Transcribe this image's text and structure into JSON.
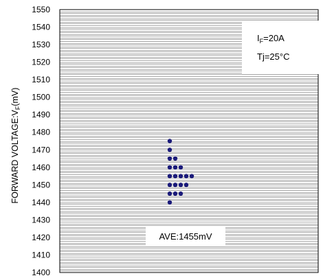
{
  "chart_data": {
    "type": "scatter",
    "ylabel_main": "FORWARD VOLTAGE:V",
    "ylabel_sub": "F",
    "ylabel_unit": "(mV)",
    "ylim": [
      1400,
      1550
    ],
    "yticks": [
      1400,
      1410,
      1420,
      1430,
      1440,
      1450,
      1460,
      1470,
      1480,
      1490,
      1500,
      1510,
      1520,
      1530,
      1540,
      1550
    ],
    "minor_grid_step": 1,
    "grid": true,
    "marker_color": "#1a1a7a",
    "points": [
      {
        "x": 0,
        "y": 1475
      },
      {
        "x": 0,
        "y": 1470
      },
      {
        "x": 0,
        "y": 1465
      },
      {
        "x": 1,
        "y": 1465
      },
      {
        "x": 0,
        "y": 1460
      },
      {
        "x": 1,
        "y": 1460
      },
      {
        "x": 2,
        "y": 1460
      },
      {
        "x": 0,
        "y": 1455
      },
      {
        "x": 1,
        "y": 1455
      },
      {
        "x": 2,
        "y": 1455
      },
      {
        "x": 3,
        "y": 1455
      },
      {
        "x": 4,
        "y": 1455
      },
      {
        "x": 0,
        "y": 1450
      },
      {
        "x": 1,
        "y": 1450
      },
      {
        "x": 2,
        "y": 1450
      },
      {
        "x": 3,
        "y": 1450
      },
      {
        "x": 0,
        "y": 1445
      },
      {
        "x": 1,
        "y": 1445
      },
      {
        "x": 2,
        "y": 1445
      },
      {
        "x": 0,
        "y": 1440
      }
    ],
    "condition_box": {
      "line1_main": "I",
      "line1_sub": "F",
      "line1_rest": "=20A",
      "line2": "Tj=25°C"
    },
    "average_label": "AVE:1455mV"
  }
}
